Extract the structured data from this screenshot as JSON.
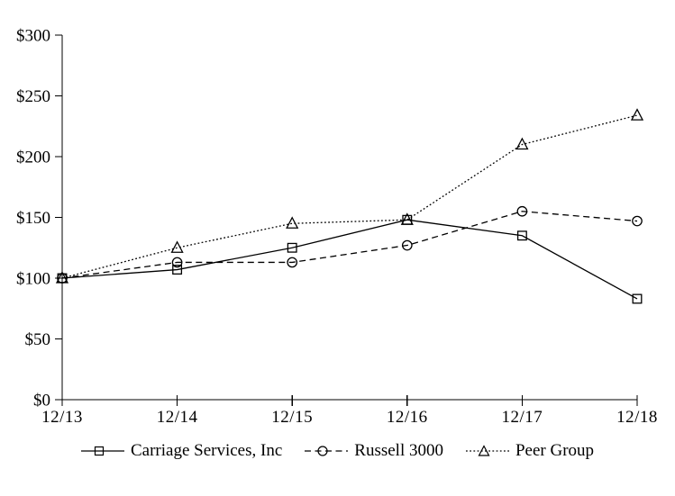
{
  "chart_data": {
    "type": "line",
    "title": "",
    "xlabel": "",
    "ylabel": "",
    "categories": [
      "12/13",
      "12/14",
      "12/15",
      "12/16",
      "12/17",
      "12/18"
    ],
    "series": [
      {
        "name": "Carriage Services, Inc",
        "marker": "square",
        "line_style": "solid",
        "values": [
          100,
          107,
          125,
          148,
          135,
          83
        ]
      },
      {
        "name": "Russell 3000",
        "marker": "circle",
        "line_style": "dashed",
        "values": [
          100,
          113,
          113,
          127,
          155,
          147
        ]
      },
      {
        "name": "Peer Group",
        "marker": "triangle",
        "line_style": "dotted",
        "values": [
          100,
          125,
          145,
          148,
          210,
          234
        ]
      }
    ],
    "ylim": [
      0,
      300
    ],
    "y_tick_interval": 50,
    "y_tick_labels": [
      "$0",
      "$50",
      "$100",
      "$150",
      "$200",
      "$250",
      "$300"
    ],
    "grid": false,
    "legend_position": "bottom",
    "line_color": "#000000",
    "background_color": "#ffffff"
  }
}
